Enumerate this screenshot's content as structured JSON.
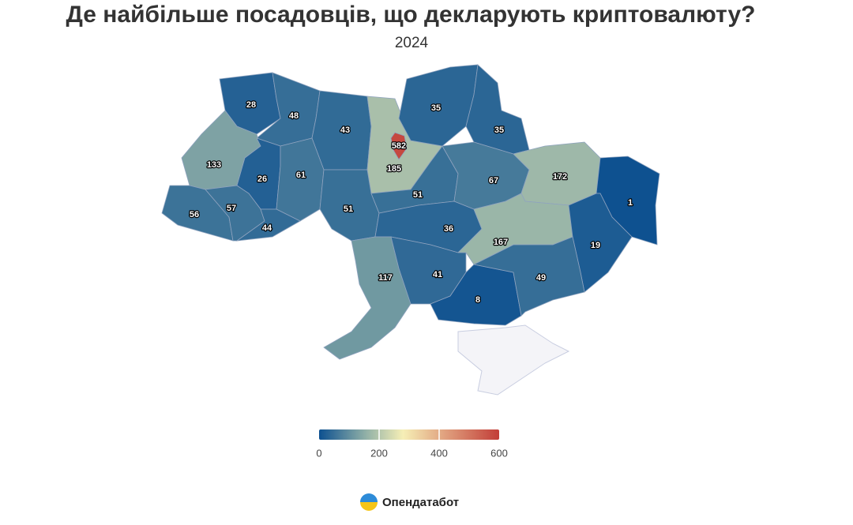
{
  "chart_data": {
    "type": "choropleth",
    "title": "Де найбільше посадовців, що декларують криптовалюту?",
    "subtitle": "2024",
    "values": [
      28,
      48,
      43,
      582,
      185,
      35,
      35,
      133,
      26,
      61,
      51,
      51,
      67,
      172,
      1,
      56,
      57,
      44,
      36,
      167,
      19,
      117,
      41,
      8,
      49
    ],
    "colorscale": [
      [
        0,
        "#0d5090"
      ],
      [
        150,
        "#8cada6"
      ],
      [
        280,
        "#f6efb6"
      ],
      [
        420,
        "#e0a07e"
      ],
      [
        600,
        "#c23e38"
      ]
    ],
    "colorbar_range": [
      0,
      600
    ],
    "colorbar_ticks": [
      0,
      200,
      400,
      600
    ],
    "source": "Опендатабот"
  }
}
